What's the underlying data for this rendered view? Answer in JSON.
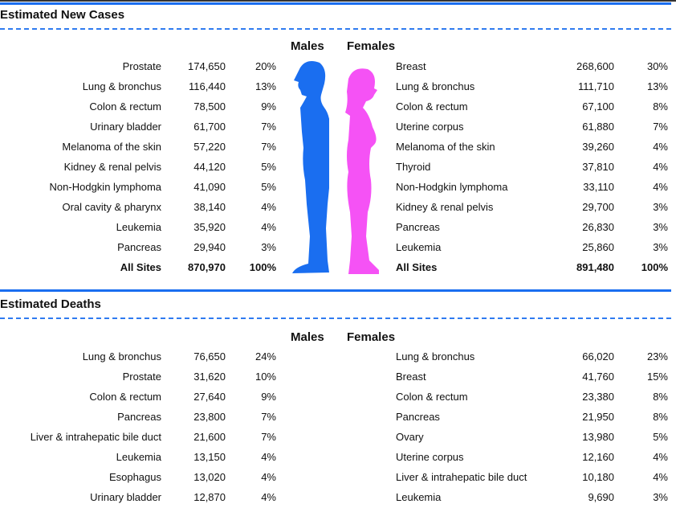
{
  "colors": {
    "males": "#1a6ef0",
    "females": "#f552f5",
    "rule": "#1a6ef0"
  },
  "sections": [
    {
      "title": "Estimated New Cases",
      "males_label": "Males",
      "females_label": "Females",
      "males": [
        [
          "Prostate",
          "174,650",
          "20%"
        ],
        [
          "Lung & bronchus",
          "116,440",
          "13%"
        ],
        [
          "Colon & rectum",
          "78,500",
          "9%"
        ],
        [
          "Urinary bladder",
          "61,700",
          "7%"
        ],
        [
          "Melanoma of the skin",
          "57,220",
          "7%"
        ],
        [
          "Kidney & renal pelvis",
          "44,120",
          "5%"
        ],
        [
          "Non-Hodgkin lymphoma",
          "41,090",
          "5%"
        ],
        [
          "Oral cavity & pharynx",
          "38,140",
          "4%"
        ],
        [
          "Leukemia",
          "35,920",
          "4%"
        ],
        [
          "Pancreas",
          "29,940",
          "3%"
        ],
        [
          "All Sites",
          "870,970",
          "100%"
        ]
      ],
      "females": [
        [
          "Breast",
          "268,600",
          "30%"
        ],
        [
          "Lung & bronchus",
          "111,710",
          "13%"
        ],
        [
          "Colon & rectum",
          "67,100",
          "8%"
        ],
        [
          "Uterine corpus",
          "61,880",
          "7%"
        ],
        [
          "Melanoma of the skin",
          "39,260",
          "4%"
        ],
        [
          "Thyroid",
          "37,810",
          "4%"
        ],
        [
          "Non-Hodgkin lymphoma",
          "33,110",
          "4%"
        ],
        [
          "Kidney & renal pelvis",
          "29,700",
          "3%"
        ],
        [
          "Pancreas",
          "26,830",
          "3%"
        ],
        [
          "Leukemia",
          "25,860",
          "3%"
        ],
        [
          "All Sites",
          "891,480",
          "100%"
        ]
      ]
    },
    {
      "title": "Estimated Deaths",
      "males_label": "Males",
      "females_label": "Females",
      "males": [
        [
          "Lung & bronchus",
          "76,650",
          "24%"
        ],
        [
          "Prostate",
          "31,620",
          "10%"
        ],
        [
          "Colon & rectum",
          "27,640",
          "9%"
        ],
        [
          "Pancreas",
          "23,800",
          "7%"
        ],
        [
          "Liver & intrahepatic bile duct",
          "21,600",
          "7%"
        ],
        [
          "Leukemia",
          "13,150",
          "4%"
        ],
        [
          "Esophagus",
          "13,020",
          "4%"
        ],
        [
          "Urinary bladder",
          "12,870",
          "4%"
        ]
      ],
      "females": [
        [
          "Lung & bronchus",
          "66,020",
          "23%"
        ],
        [
          "Breast",
          "41,760",
          "15%"
        ],
        [
          "Colon & rectum",
          "23,380",
          "8%"
        ],
        [
          "Pancreas",
          "21,950",
          "8%"
        ],
        [
          "Ovary",
          "13,980",
          "5%"
        ],
        [
          "Uterine corpus",
          "12,160",
          "4%"
        ],
        [
          "Liver & intrahepatic bile duct",
          "10,180",
          "4%"
        ],
        [
          "Leukemia",
          "9,690",
          "3%"
        ]
      ]
    }
  ]
}
